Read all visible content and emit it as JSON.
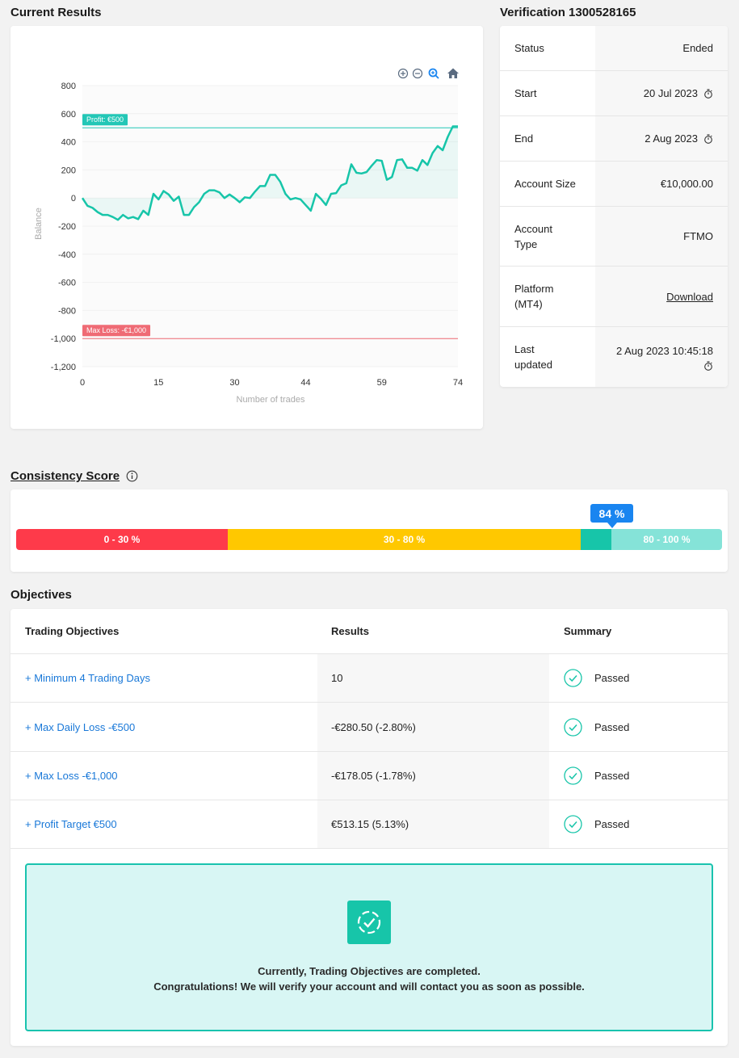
{
  "sections": {
    "current_results": "Current Results",
    "verification": "Verification 1300528165",
    "consistency": "Consistency Score",
    "objectives": "Objectives"
  },
  "chart_data": {
    "type": "line",
    "xlabel": "Number of trades",
    "ylabel": "Balance",
    "xlim": [
      0,
      74
    ],
    "ylim": [
      -1200,
      800
    ],
    "x_ticks": [
      0,
      15,
      30,
      44,
      59,
      74
    ],
    "y_ticks": [
      800,
      600,
      400,
      200,
      0,
      -200,
      -400,
      -600,
      -800,
      -1000,
      -1200
    ],
    "y_tick_labels": [
      "800",
      "600",
      "400",
      "200",
      "0",
      "-200",
      "-400",
      "-600",
      "-800",
      "-1,000",
      "-1,200"
    ],
    "profit_line": {
      "value": 500,
      "label": "Profit: €500",
      "color": "#23c7b6"
    },
    "max_loss_line": {
      "value": -1000,
      "label": "Max Loss: -€1,000",
      "color": "#ef6b75"
    },
    "series": [
      {
        "color": "#17c5a9",
        "x": [
          0,
          1,
          2,
          3,
          4,
          5,
          6,
          7,
          8,
          9,
          10,
          11,
          12,
          13,
          14,
          15,
          16,
          17,
          18,
          19,
          20,
          21,
          22,
          23,
          24,
          25,
          26,
          27,
          28,
          29,
          30,
          31,
          32,
          33,
          34,
          35,
          36,
          37,
          38,
          39,
          40,
          41,
          42,
          43,
          44,
          45,
          46,
          47,
          48,
          49,
          50,
          51,
          52,
          53,
          54,
          55,
          56,
          57,
          58,
          59,
          60,
          61,
          62,
          63,
          64,
          65,
          66,
          67,
          68,
          69,
          70,
          71,
          72,
          73,
          74
        ],
        "values": [
          0,
          -55,
          -70,
          -100,
          -120,
          -120,
          -135,
          -155,
          -120,
          -145,
          -135,
          -150,
          -90,
          -120,
          30,
          -10,
          50,
          25,
          -20,
          10,
          -120,
          -120,
          -65,
          -30,
          30,
          55,
          55,
          40,
          0,
          25,
          0,
          -30,
          5,
          0,
          45,
          85,
          85,
          165,
          165,
          115,
          30,
          -10,
          0,
          -10,
          -50,
          -90,
          30,
          -5,
          -50,
          30,
          35,
          90,
          105,
          240,
          180,
          175,
          185,
          230,
          270,
          265,
          130,
          150,
          270,
          275,
          215,
          215,
          195,
          270,
          235,
          320,
          370,
          340,
          435,
          510,
          510
        ]
      }
    ]
  },
  "chart_toolbar": [
    {
      "name": "zoom-in-icon"
    },
    {
      "name": "zoom-out-icon"
    },
    {
      "name": "zoom-select-icon"
    },
    {
      "name": "home-icon"
    }
  ],
  "verification": {
    "rows": [
      {
        "label": "Status",
        "value": "Ended"
      },
      {
        "label": "Start",
        "value": "20 Jul 2023"
      },
      {
        "label": "End",
        "value": "2 Aug 2023"
      },
      {
        "label": "Account Size",
        "value": "€10,000.00"
      },
      {
        "label": "Account",
        "label2": "Type",
        "value": "FTMO"
      },
      {
        "label": "Platform",
        "label2": "(MT4)",
        "value": "Download"
      },
      {
        "label": "Last",
        "label2": "updated",
        "value": "2 Aug 2023 10:45:18"
      }
    ]
  },
  "consistency": {
    "segments": [
      "0 - 30 %",
      "30 - 80 %",
      "80 - 100 %"
    ],
    "score_label": "84 %",
    "score": 84,
    "colors": {
      "low": "#fe3a4a",
      "mid": "#ffc800",
      "high": "#85e3d8",
      "achieved": "#17c5a9",
      "badge": "#1985f0"
    }
  },
  "objectives": {
    "headers": {
      "objective": "Trading Objectives",
      "results": "Results",
      "summary": "Summary"
    },
    "rows": [
      {
        "objective": "+ Minimum 4 Trading Days",
        "result": "10",
        "summary": "Passed"
      },
      {
        "objective": "+ Max Daily Loss -€500",
        "result": "-€280.50 (-2.80%)",
        "summary": "Passed"
      },
      {
        "objective": "+ Max Loss -€1,000",
        "result": "-€178.05 (-1.78%)",
        "summary": "Passed"
      },
      {
        "objective": "+ Profit Target €500",
        "result": "€513.15 (5.13%)",
        "summary": "Passed"
      }
    ],
    "message_line1": "Currently, Trading Objectives are completed.",
    "message_line2": "Congratulations! We will verify your account and will contact you as soon as possible."
  }
}
